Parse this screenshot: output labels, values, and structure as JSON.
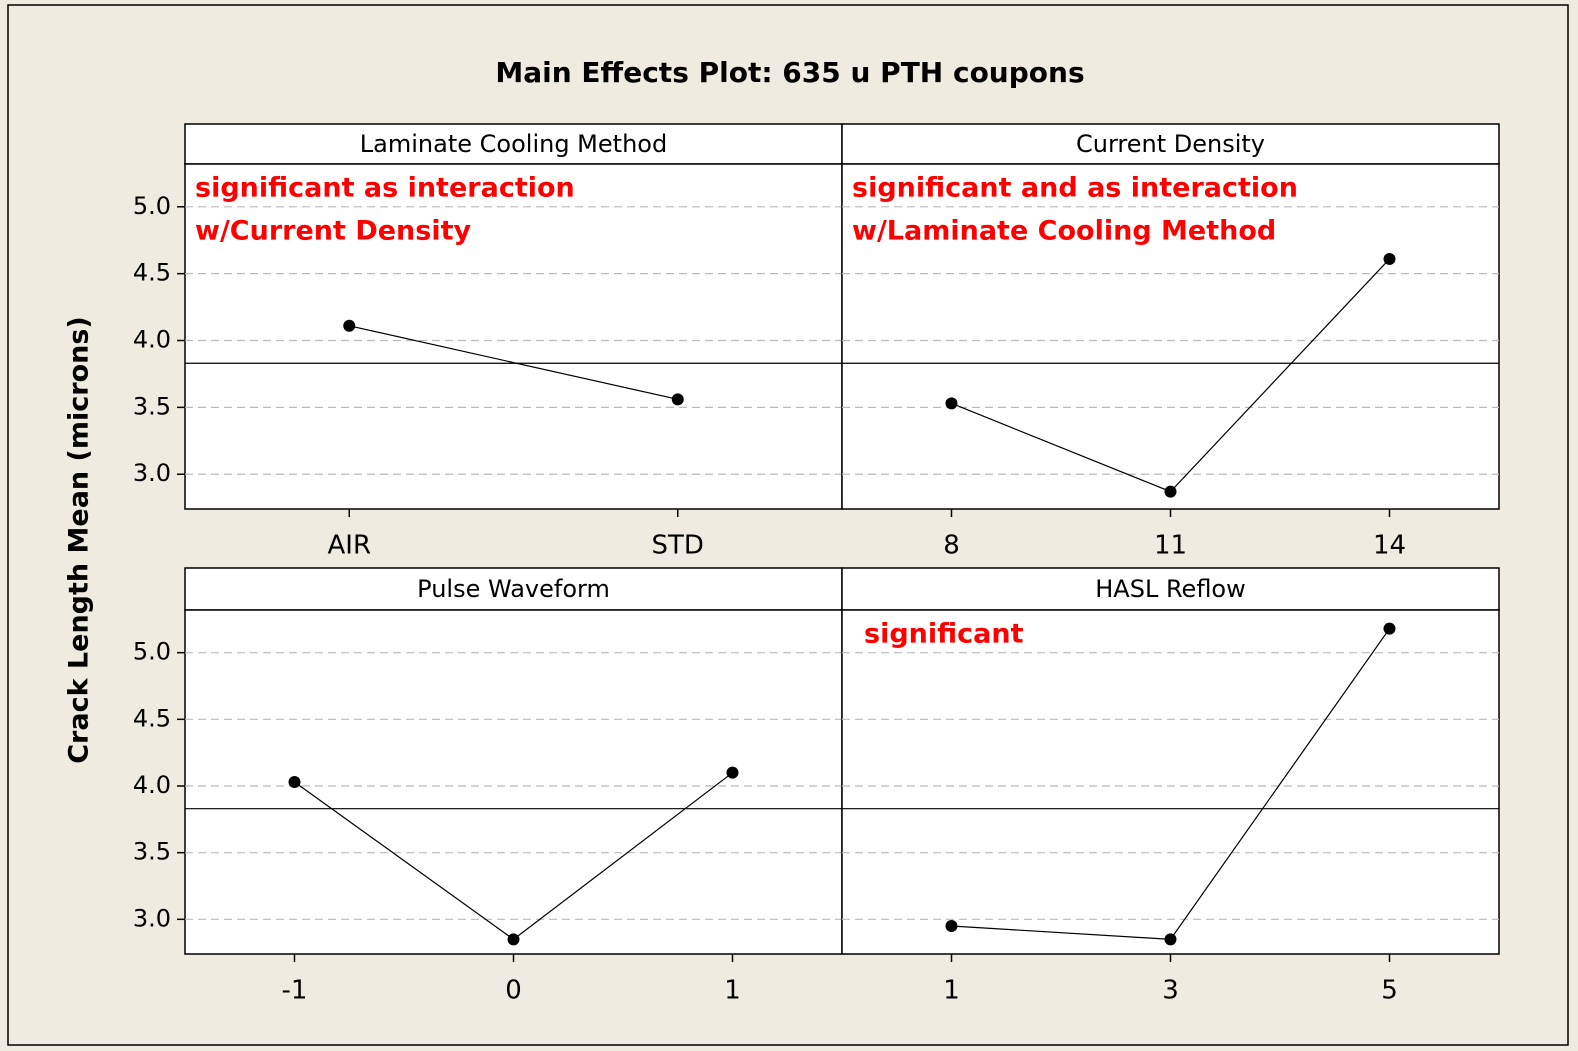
{
  "title": "Main Effects Plot: 635 u PTH coupons",
  "ylabel": "Crack Length Mean (microns)",
  "chart_data": [
    {
      "type": "line",
      "title": "Laminate Cooling Method",
      "categories": [
        "AIR",
        "STD"
      ],
      "values": [
        4.11,
        3.56
      ],
      "annotations": [
        "significant as interaction",
        "w/Current Density"
      ],
      "hline": 3.83,
      "ylim": [
        2.74,
        5.32
      ],
      "yticks": [
        {
          "value": 3,
          "label": "3.0"
        },
        3.5,
        {
          "value": 4,
          "label": "4.0"
        },
        4.5,
        {
          "value": 5,
          "label": "5.0"
        }
      ],
      "grid": true,
      "color": "#000000"
    },
    {
      "type": "line",
      "title": "Current Density",
      "categories": [
        "8",
        "11",
        "14"
      ],
      "values": [
        3.53,
        2.87,
        4.61
      ],
      "annotations": [
        "significant and as interaction",
        "w/Laminate Cooling Method"
      ],
      "hline": 3.83,
      "ylim": [
        2.74,
        5.32
      ],
      "yticks": [
        {
          "value": 3,
          "label": "3.0"
        },
        3.5,
        {
          "value": 4,
          "label": "4.0"
        },
        4.5,
        {
          "value": 5,
          "label": "5.0"
        }
      ],
      "grid": true,
      "color": "#000000"
    },
    {
      "type": "line",
      "title": "Pulse Waveform",
      "categories": [
        "-1",
        "0",
        "1"
      ],
      "values": [
        4.03,
        2.85,
        4.1
      ],
      "hline": 3.83,
      "ylim": [
        2.74,
        5.32
      ],
      "yticks": [
        {
          "value": 3,
          "label": "3.0"
        },
        3.5,
        {
          "value": 4,
          "label": "4.0"
        },
        4.5,
        {
          "value": 5,
          "label": "5.0"
        }
      ],
      "grid": true,
      "color": "#000000"
    },
    {
      "type": "line",
      "title": "HASL Reflow",
      "categories": [
        "1",
        "3",
        "5"
      ],
      "values": [
        2.95,
        2.85,
        5.18
      ],
      "annotations": [
        "significant"
      ],
      "hline": 3.83,
      "ylim": [
        2.74,
        5.32
      ],
      "yticks": [
        {
          "value": 3,
          "label": "3.0"
        },
        3.5,
        {
          "value": 4,
          "label": "4.0"
        },
        4.5,
        {
          "value": 5,
          "label": "5.0"
        }
      ],
      "grid": true,
      "color": "#000000"
    }
  ]
}
